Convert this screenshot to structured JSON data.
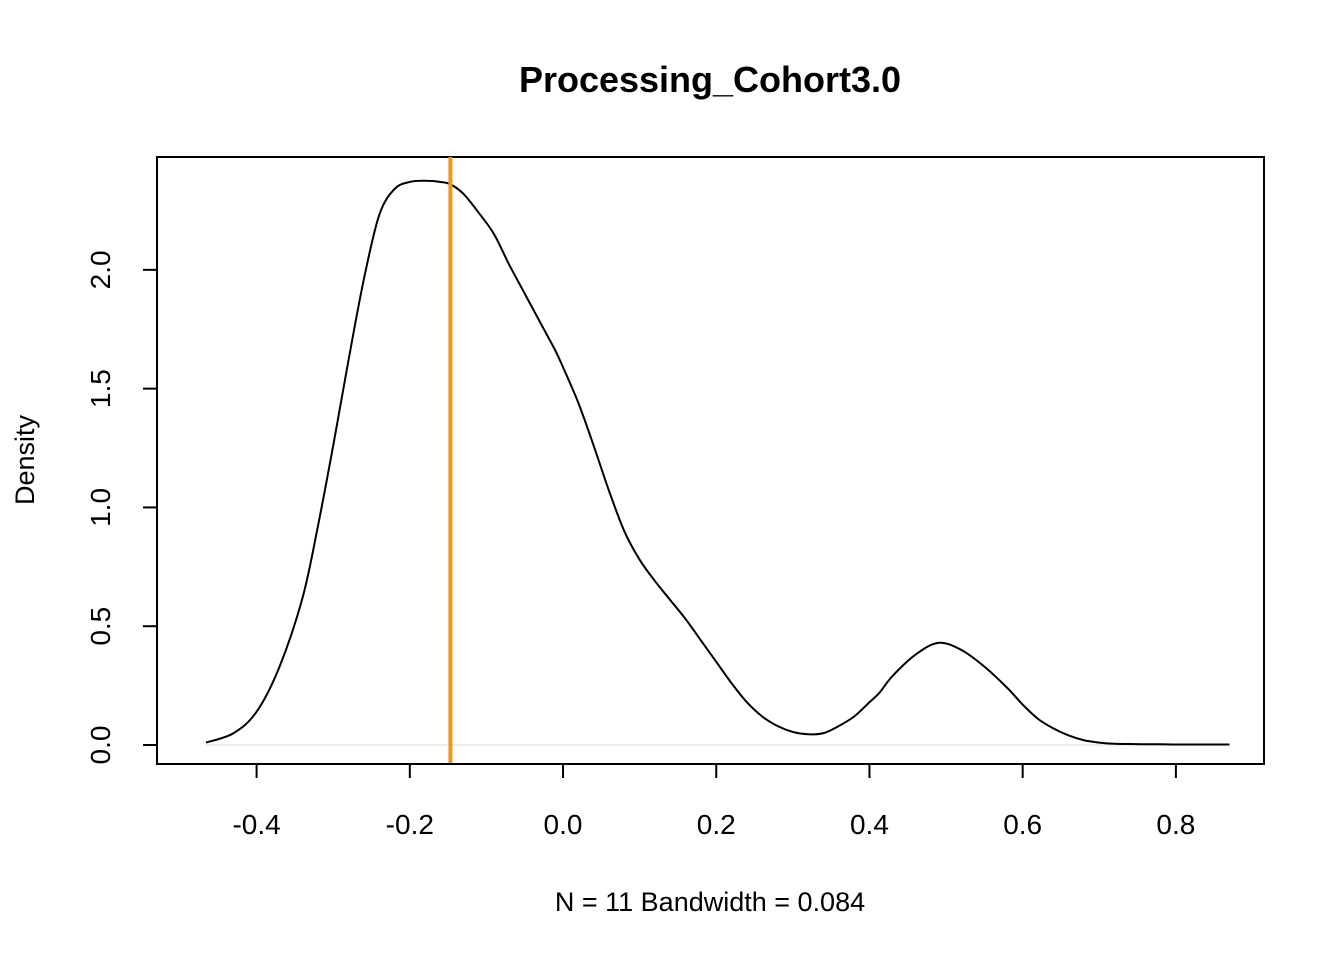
{
  "chart_data": {
    "type": "line",
    "title": "Processing_Cohort3.0",
    "xlabel": "N = 11   Bandwidth = 0.084",
    "ylabel": "Density",
    "xlim": [
      -0.53,
      0.915
    ],
    "ylim": [
      -0.08,
      2.475
    ],
    "x_ticks": [
      "-0.4",
      "-0.2",
      "0.0",
      "0.2",
      "0.4",
      "0.6",
      "0.8"
    ],
    "x_tick_values": [
      -0.4,
      -0.2,
      0.0,
      0.2,
      0.4,
      0.6,
      0.8
    ],
    "y_ticks": [
      "0.0",
      "0.5",
      "1.0",
      "1.5",
      "2.0"
    ],
    "y_tick_values": [
      0.0,
      0.5,
      1.0,
      1.5,
      2.0
    ],
    "baseline": 0,
    "reference_line": {
      "x": -0.147,
      "color": "#f0961e"
    },
    "line_color": "#000000",
    "series": [
      {
        "x": [
          -0.466,
          -0.43,
          -0.4,
          -0.37,
          -0.34,
          -0.32,
          -0.3,
          -0.28,
          -0.26,
          -0.24,
          -0.22,
          -0.2,
          -0.18,
          -0.16,
          -0.147,
          -0.13,
          -0.11,
          -0.09,
          -0.07,
          -0.05,
          -0.03,
          -0.01,
          0.0,
          0.02,
          0.04,
          0.06,
          0.08,
          0.1,
          0.12,
          0.14,
          0.16,
          0.18,
          0.2,
          0.22,
          0.24,
          0.26,
          0.28,
          0.3,
          0.32,
          0.34,
          0.36,
          0.38,
          0.4,
          0.413,
          0.43,
          0.46,
          0.49,
          0.52,
          0.55,
          0.58,
          0.6,
          0.62,
          0.64,
          0.66,
          0.68,
          0.7,
          0.72,
          0.74,
          0.76,
          0.78,
          0.8,
          0.83,
          0.87
        ],
        "y": [
          0.01,
          0.05,
          0.14,
          0.33,
          0.62,
          0.92,
          1.26,
          1.62,
          1.96,
          2.23,
          2.34,
          2.37,
          2.375,
          2.37,
          2.36,
          2.32,
          2.24,
          2.15,
          2.02,
          1.9,
          1.78,
          1.66,
          1.59,
          1.44,
          1.26,
          1.07,
          0.9,
          0.78,
          0.69,
          0.61,
          0.53,
          0.44,
          0.35,
          0.26,
          0.18,
          0.12,
          0.08,
          0.055,
          0.045,
          0.05,
          0.08,
          0.12,
          0.18,
          0.22,
          0.29,
          0.38,
          0.43,
          0.4,
          0.33,
          0.24,
          0.17,
          0.11,
          0.07,
          0.04,
          0.02,
          0.01,
          0.005,
          0.004,
          0.003,
          0.003,
          0.002,
          0.002,
          0.002
        ]
      }
    ]
  }
}
